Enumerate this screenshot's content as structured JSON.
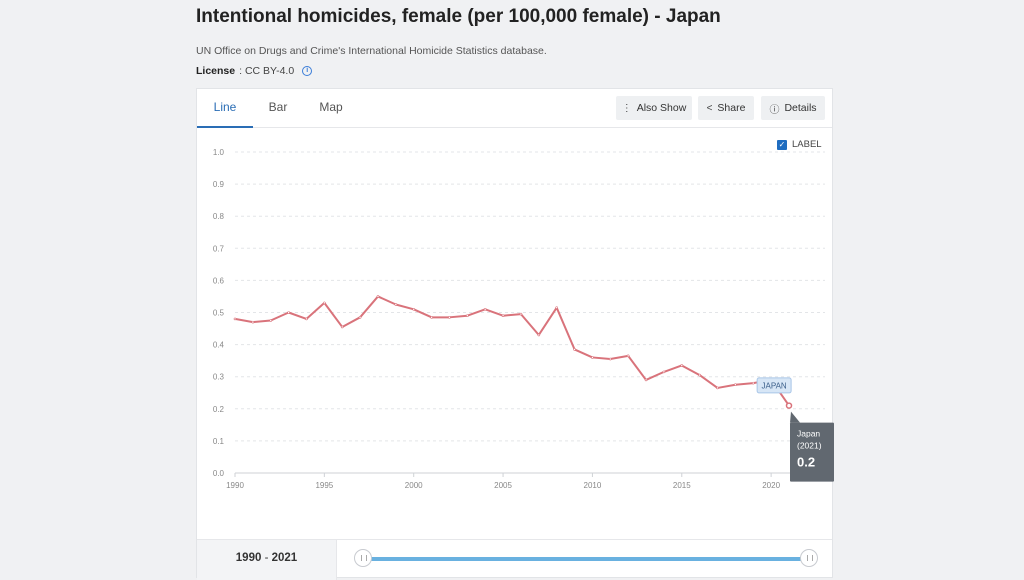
{
  "header": {
    "title": "Intentional homicides, female (per 100,000 female) - Japan",
    "source": "UN Office on Drugs and Crime's International Homicide Statistics database.",
    "license_label": "License",
    "license_value": ": CC BY-4.0"
  },
  "tabs": [
    {
      "label": "Line",
      "active": true
    },
    {
      "label": "Bar",
      "active": false
    },
    {
      "label": "Map",
      "active": false
    }
  ],
  "toolbar": {
    "also_show": "Also Show",
    "share": "Share",
    "details": "Details"
  },
  "label_toggle": {
    "text": "LABEL",
    "checked": true
  },
  "colors": {
    "line": "#d9737b",
    "accent": "#2a6db5",
    "tooltip_bg": "#616870"
  },
  "chart_data": {
    "type": "line",
    "series": [
      {
        "name": "JAPAN",
        "x": [
          1990,
          1991,
          1992,
          1993,
          1994,
          1995,
          1996,
          1997,
          1998,
          1999,
          2000,
          2001,
          2002,
          2003,
          2004,
          2005,
          2006,
          2007,
          2008,
          2009,
          2010,
          2011,
          2012,
          2013,
          2014,
          2015,
          2016,
          2017,
          2018,
          2019,
          2020,
          2021
        ],
        "values": [
          0.48,
          0.47,
          0.475,
          0.5,
          0.48,
          0.53,
          0.455,
          0.485,
          0.55,
          0.525,
          0.51,
          0.485,
          0.485,
          0.49,
          0.51,
          0.49,
          0.495,
          0.43,
          0.515,
          0.385,
          0.36,
          0.355,
          0.365,
          0.29,
          0.315,
          0.335,
          0.305,
          0.265,
          0.275,
          0.28,
          0.29,
          0.21
        ]
      }
    ],
    "xticks": [
      "1990",
      "1995",
      "2000",
      "2005",
      "2010",
      "2015",
      "2020"
    ],
    "yticks": [
      "0.0",
      "0.1",
      "0.2",
      "0.3",
      "0.4",
      "0.5",
      "0.6",
      "0.7",
      "0.8",
      "0.9",
      "1.0"
    ],
    "xlim": [
      1990,
      2021
    ],
    "ylim": [
      0,
      1.0
    ],
    "grid": true,
    "tooltip": {
      "country": "Japan",
      "year": "(2021)",
      "value": "0.2"
    }
  },
  "range": {
    "start": "1990",
    "sep": "-",
    "end": "2021"
  }
}
